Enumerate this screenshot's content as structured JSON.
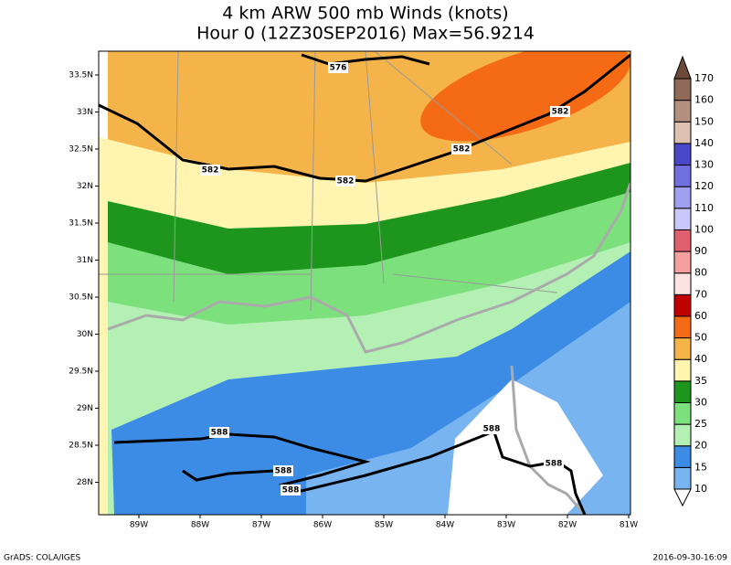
{
  "title": "4 km ARW 500 mb Winds (knots)",
  "subtitle": "Hour 0 (12Z30SEP2016) Max=56.9214",
  "map": {
    "lat_labels": [
      "33.5N",
      "33N",
      "32.5N",
      "32N",
      "31.5N",
      "31N",
      "30.5N",
      "30N",
      "29.5N",
      "29N",
      "28.5N",
      "28N"
    ],
    "lon_labels": [
      "89W",
      "88W",
      "87W",
      "86W",
      "85W",
      "84W",
      "83W",
      "82W",
      "81W"
    ],
    "contour_labels": [
      576,
      582,
      582,
      582,
      582,
      588,
      588,
      588,
      588,
      588
    ]
  },
  "colorbar": {
    "levels": [
      10,
      15,
      20,
      25,
      30,
      35,
      40,
      50,
      60,
      70,
      80,
      90,
      100,
      110,
      120,
      130,
      140,
      150,
      160,
      170
    ],
    "colors": [
      "#ffffff",
      "#78b4f0",
      "#3c8ce6",
      "#b4f0b4",
      "#7ce07c",
      "#1e961e",
      "#fff5b0",
      "#f5b44a",
      "#f56a14",
      "#c00000",
      "#fde2e2",
      "#f4a0a0",
      "#e06070",
      "#c8c8fa",
      "#a0a0f0",
      "#7070e0",
      "#4848c8",
      "#dcc0b0",
      "#b49080",
      "#906a58",
      "#6e4a3a"
    ]
  },
  "footer": {
    "left": "GrADS: COLA/IGES",
    "right": "2016-09-30-16:09"
  }
}
